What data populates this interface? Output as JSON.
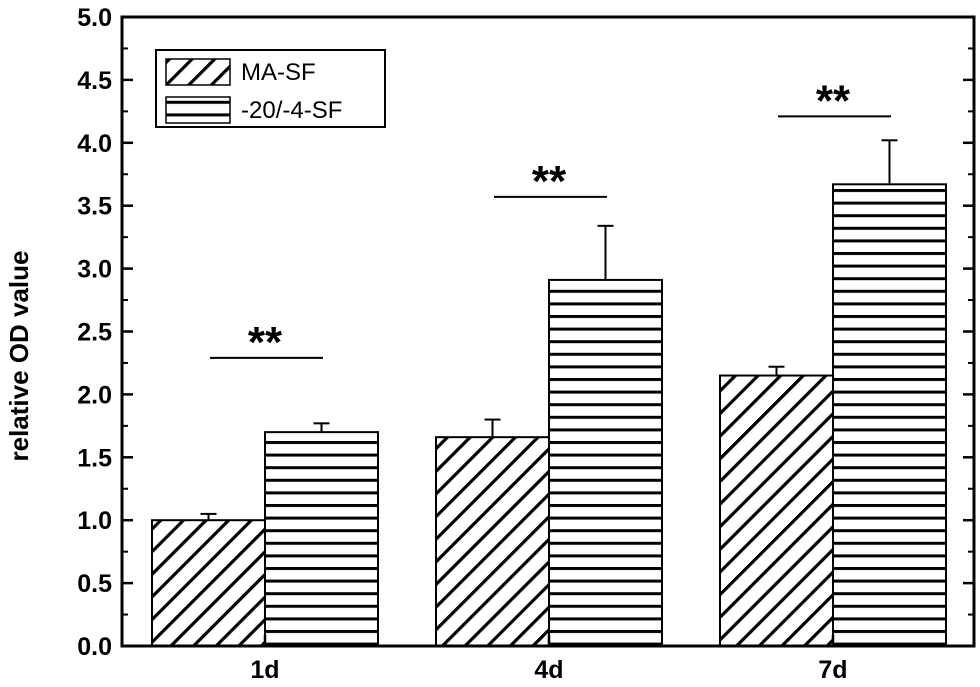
{
  "chart_data": {
    "type": "bar",
    "categories": [
      "1d",
      "4d",
      "7d"
    ],
    "series": [
      {
        "name": "MA-SF",
        "values": [
          1.0,
          1.66,
          2.15
        ],
        "errors": [
          0.05,
          0.14,
          0.07
        ],
        "pattern": "diagonal-hatch"
      },
      {
        "name": "-20/-4-SF",
        "values": [
          1.7,
          2.91,
          3.67
        ],
        "errors": [
          0.07,
          0.43,
          0.35
        ],
        "pattern": "horizontal-stripes"
      }
    ],
    "xlabel": "",
    "ylabel": "relative OD value",
    "ylim": [
      0,
      5.0
    ],
    "yticks": [
      "0.0",
      "0.5",
      "1.0",
      "1.5",
      "2.0",
      "2.5",
      "3.0",
      "3.5",
      "4.0",
      "4.5",
      "5.0"
    ],
    "grid": false,
    "legend_position": "top-left",
    "significance": [
      {
        "category": "1d",
        "label": "**",
        "y": 2.29
      },
      {
        "category": "4d",
        "label": "**",
        "y": 3.57
      },
      {
        "category": "7d",
        "label": "**",
        "y": 4.21
      }
    ],
    "colors": {
      "bar_fill": "#ffffff",
      "stroke": "#000000"
    }
  }
}
